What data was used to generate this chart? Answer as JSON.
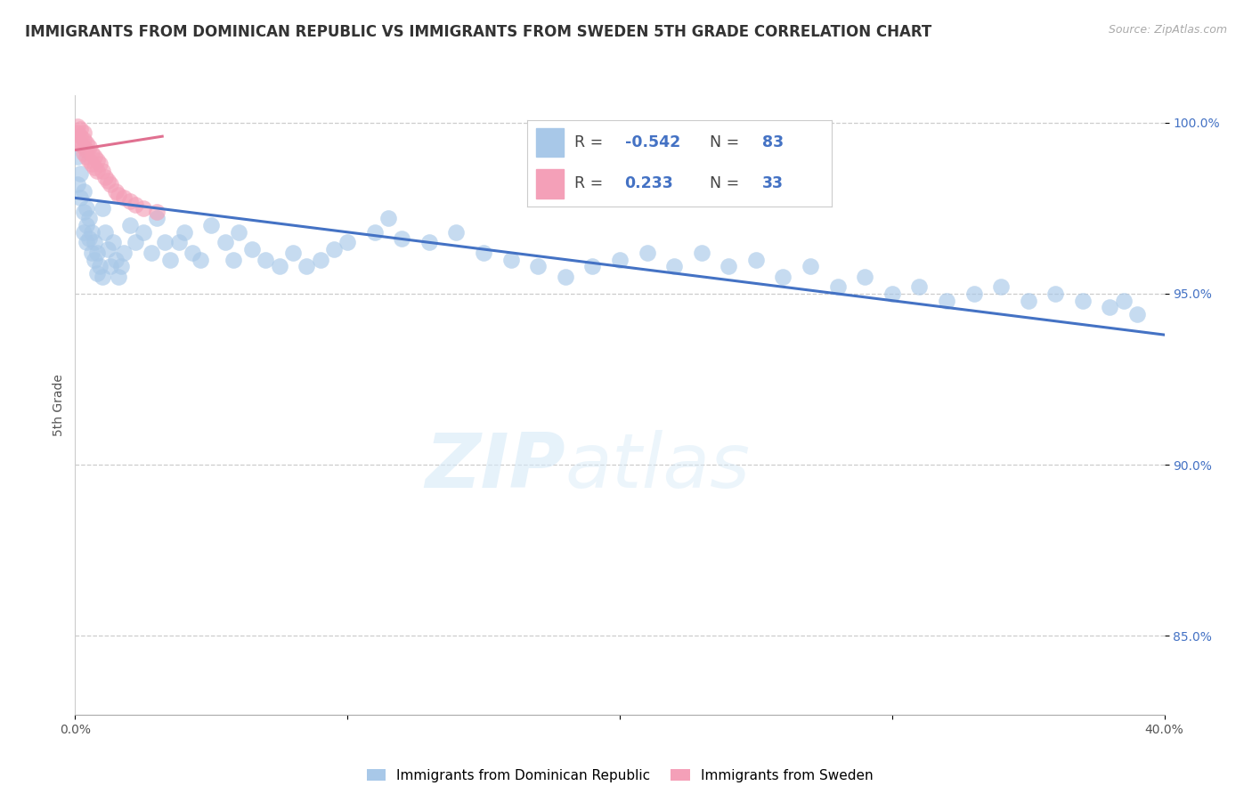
{
  "title": "IMMIGRANTS FROM DOMINICAN REPUBLIC VS IMMIGRANTS FROM SWEDEN 5TH GRADE CORRELATION CHART",
  "source_text": "Source: ZipAtlas.com",
  "ylabel": "5th Grade",
  "xlabel": "",
  "xlim": [
    0.0,
    0.4
  ],
  "ylim": [
    0.827,
    1.008
  ],
  "yticks": [
    0.85,
    0.9,
    0.95,
    1.0
  ],
  "ytick_labels": [
    "85.0%",
    "90.0%",
    "95.0%",
    "100.0%"
  ],
  "xticks": [
    0.0,
    0.1,
    0.2,
    0.3,
    0.4
  ],
  "xtick_labels": [
    "0.0%",
    "",
    "",
    "",
    "40.0%"
  ],
  "legend_label1": "Immigrants from Dominican Republic",
  "legend_label2": "Immigrants from Sweden",
  "color_blue": "#a8c8e8",
  "color_pink": "#f4a0b8",
  "color_blue_line": "#4472c4",
  "color_pink_line": "#e07090",
  "R1": -0.542,
  "N1": 83,
  "R2": 0.233,
  "N2": 33,
  "watermark_zip": "ZIP",
  "watermark_atlas": "atlas",
  "background_color": "#ffffff",
  "grid_color": "#cccccc",
  "title_fontsize": 12,
  "axis_label_fontsize": 10,
  "tick_fontsize": 10,
  "blue_x": [
    0.001,
    0.001,
    0.002,
    0.002,
    0.003,
    0.003,
    0.003,
    0.004,
    0.004,
    0.004,
    0.005,
    0.005,
    0.006,
    0.006,
    0.007,
    0.007,
    0.008,
    0.008,
    0.009,
    0.01,
    0.01,
    0.011,
    0.012,
    0.013,
    0.014,
    0.015,
    0.016,
    0.017,
    0.018,
    0.02,
    0.022,
    0.025,
    0.028,
    0.03,
    0.033,
    0.035,
    0.038,
    0.04,
    0.043,
    0.046,
    0.05,
    0.055,
    0.058,
    0.06,
    0.065,
    0.07,
    0.075,
    0.08,
    0.085,
    0.09,
    0.095,
    0.1,
    0.11,
    0.115,
    0.12,
    0.13,
    0.14,
    0.15,
    0.16,
    0.17,
    0.18,
    0.19,
    0.2,
    0.21,
    0.22,
    0.23,
    0.24,
    0.25,
    0.26,
    0.27,
    0.28,
    0.29,
    0.3,
    0.31,
    0.32,
    0.33,
    0.34,
    0.35,
    0.36,
    0.37,
    0.38,
    0.385,
    0.39
  ],
  "blue_y": [
    0.99,
    0.982,
    0.985,
    0.978,
    0.98,
    0.974,
    0.968,
    0.975,
    0.97,
    0.965,
    0.972,
    0.966,
    0.968,
    0.962,
    0.965,
    0.96,
    0.962,
    0.956,
    0.958,
    0.975,
    0.955,
    0.968,
    0.963,
    0.958,
    0.965,
    0.96,
    0.955,
    0.958,
    0.962,
    0.97,
    0.965,
    0.968,
    0.962,
    0.972,
    0.965,
    0.96,
    0.965,
    0.968,
    0.962,
    0.96,
    0.97,
    0.965,
    0.96,
    0.968,
    0.963,
    0.96,
    0.958,
    0.962,
    0.958,
    0.96,
    0.963,
    0.965,
    0.968,
    0.972,
    0.966,
    0.965,
    0.968,
    0.962,
    0.96,
    0.958,
    0.955,
    0.958,
    0.96,
    0.962,
    0.958,
    0.962,
    0.958,
    0.96,
    0.955,
    0.958,
    0.952,
    0.955,
    0.95,
    0.952,
    0.948,
    0.95,
    0.952,
    0.948,
    0.95,
    0.948,
    0.946,
    0.948,
    0.944
  ],
  "pink_x": [
    0.001,
    0.001,
    0.001,
    0.002,
    0.002,
    0.002,
    0.003,
    0.003,
    0.003,
    0.003,
    0.004,
    0.004,
    0.004,
    0.005,
    0.005,
    0.006,
    0.006,
    0.007,
    0.007,
    0.008,
    0.008,
    0.009,
    0.01,
    0.011,
    0.012,
    0.013,
    0.015,
    0.016,
    0.018,
    0.02,
    0.022,
    0.025,
    0.03
  ],
  "pink_y": [
    0.999,
    0.997,
    0.995,
    0.998,
    0.996,
    0.994,
    0.997,
    0.995,
    0.993,
    0.991,
    0.994,
    0.992,
    0.99,
    0.993,
    0.989,
    0.991,
    0.988,
    0.99,
    0.987,
    0.989,
    0.986,
    0.988,
    0.986,
    0.984,
    0.983,
    0.982,
    0.98,
    0.979,
    0.978,
    0.977,
    0.976,
    0.975,
    0.974
  ],
  "blue_line_x": [
    0.0,
    0.4
  ],
  "blue_line_y": [
    0.978,
    0.938
  ],
  "pink_line_x": [
    0.0,
    0.032
  ],
  "pink_line_y": [
    0.992,
    0.996
  ]
}
